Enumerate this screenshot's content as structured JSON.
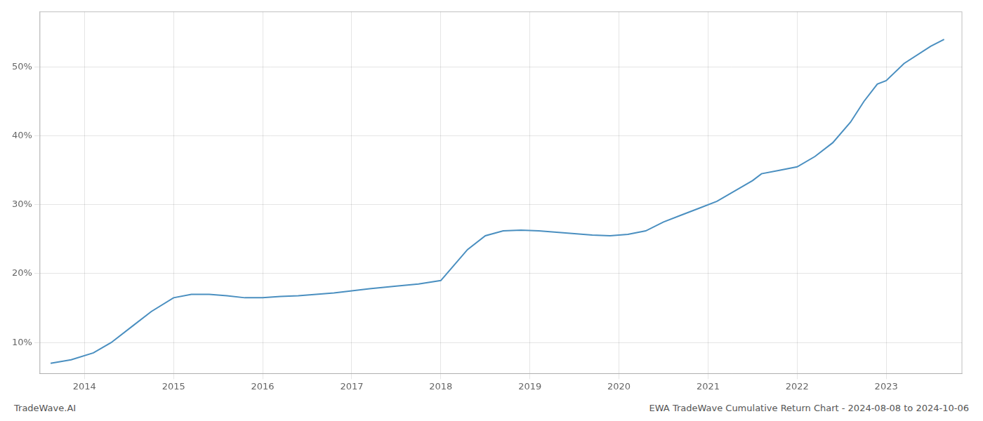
{
  "chart_data": {
    "type": "line",
    "x": [
      2013.62,
      2013.85,
      2014.1,
      2014.3,
      2014.55,
      2014.75,
      2015.0,
      2015.2,
      2015.4,
      2015.6,
      2015.8,
      2016.0,
      2016.2,
      2016.4,
      2016.6,
      2016.8,
      2017.0,
      2017.2,
      2017.5,
      2017.75,
      2018.0,
      2018.1,
      2018.3,
      2018.5,
      2018.7,
      2018.9,
      2019.1,
      2019.3,
      2019.5,
      2019.7,
      2019.9,
      2020.1,
      2020.3,
      2020.5,
      2020.7,
      2020.9,
      2021.1,
      2021.3,
      2021.5,
      2021.6,
      2021.8,
      2022.0,
      2022.2,
      2022.4,
      2022.6,
      2022.75,
      2022.9,
      2023.0,
      2023.2,
      2023.5,
      2023.65
    ],
    "values": [
      7.0,
      7.5,
      8.5,
      10.0,
      12.5,
      14.5,
      16.5,
      17.0,
      17.0,
      16.8,
      16.5,
      16.5,
      16.7,
      16.8,
      17.0,
      17.2,
      17.5,
      17.8,
      18.2,
      18.5,
      19.0,
      20.5,
      23.5,
      25.5,
      26.2,
      26.3,
      26.2,
      26.0,
      25.8,
      25.6,
      25.5,
      25.7,
      26.2,
      27.5,
      28.5,
      29.5,
      30.5,
      32.0,
      33.5,
      34.5,
      35.0,
      35.5,
      37.0,
      39.0,
      42.0,
      45.0,
      47.5,
      48.0,
      50.5,
      53.0,
      54.0
    ],
    "color": "#4a8fc0",
    "xlim": [
      2013.5,
      2023.85
    ],
    "ylim": [
      5.5,
      58
    ],
    "xticks": [
      2014,
      2015,
      2016,
      2017,
      2018,
      2019,
      2020,
      2021,
      2022,
      2023
    ],
    "yticks": [
      {
        "value": 10,
        "label": "10%"
      },
      {
        "value": 20,
        "label": "20%"
      },
      {
        "value": 30,
        "label": "30%"
      },
      {
        "value": 40,
        "label": "40%"
      },
      {
        "value": 50,
        "label": "50%"
      }
    ],
    "grid": true,
    "annotations": [
      "TradeWave.AI",
      "EWA TradeWave Cumulative Return Chart - 2024-08-08 to 2024-10-06"
    ]
  }
}
